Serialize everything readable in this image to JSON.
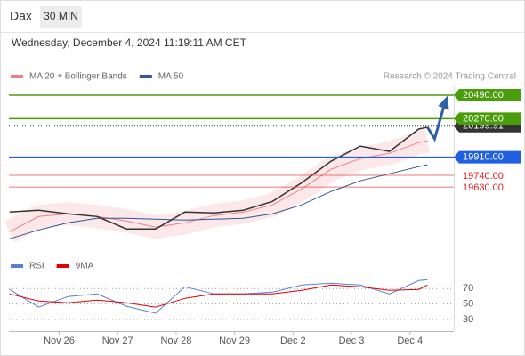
{
  "header": {
    "symbol": "Dax",
    "interval": "30 MIN",
    "datetime": "Wednesday, December 4, 2024 11:19:11 AM CET"
  },
  "chart_data": [
    {
      "type": "line",
      "credit": "Research © 2024 Trading Central",
      "x": [
        -0.85,
        -0.35,
        0.15,
        0.65,
        1.15,
        1.65,
        2.15,
        2.65,
        3.15,
        3.65,
        4.15,
        4.65,
        5.15,
        5.65,
        6.15,
        6.3
      ],
      "price": {
        "color": "#333333",
        "values": [
          19396,
          19413,
          19380,
          19354,
          19238,
          19238,
          19396,
          19388,
          19413,
          19496,
          19672,
          19872,
          20014,
          19964,
          20173,
          20190
        ]
      },
      "series": [
        {
          "name": "MA 20 + Bollinger Bands",
          "color": "#f08080",
          "values": [
            19212,
            19354,
            19380,
            19354,
            19313,
            19254,
            19296,
            19363,
            19396,
            19463,
            19613,
            19797,
            19897,
            19947,
            20047,
            20064
          ]
        },
        {
          "name": "MA 50",
          "color": "#2f5597",
          "values": [
            19146,
            19229,
            19296,
            19338,
            19338,
            19329,
            19321,
            19329,
            19338,
            19380,
            19463,
            19588,
            19688,
            19755,
            19822,
            19839
          ]
        }
      ],
      "levels": [
        {
          "value": 20199.91,
          "label": "20199.91",
          "color": "#333333",
          "line": "dotted"
        },
        {
          "value": 20490,
          "label": "20490.00",
          "color": "#4a9d0a",
          "line": "solid"
        },
        {
          "value": 20270,
          "label": "20270.00",
          "color": "#4a9d0a",
          "line": "solid"
        },
        {
          "value": 19910,
          "label": "19910.00",
          "color": "#1f5fe0",
          "line": "solid"
        },
        {
          "value": 19740,
          "label": "19740.00",
          "color": "#e02020",
          "line": "solid"
        },
        {
          "value": 19630,
          "label": "19630.00",
          "color": "#e02020",
          "line": "solid"
        }
      ],
      "xlim": [
        -0.86,
        6.75
      ],
      "ylim": [
        19090,
        20590
      ]
    },
    {
      "type": "line",
      "x": [
        -0.85,
        -0.35,
        0.15,
        0.65,
        1.15,
        1.65,
        2.15,
        2.65,
        3.15,
        3.65,
        4.15,
        4.65,
        5.15,
        5.65,
        6.15,
        6.3
      ],
      "series": [
        {
          "name": "RSI",
          "color": "#5b7fd6",
          "values": [
            68.9,
            46,
            59.7,
            63.1,
            47.1,
            38,
            72.3,
            63.1,
            63.1,
            65.4,
            74.6,
            76.9,
            74.6,
            63.1,
            80.3,
            81.4
          ]
        },
        {
          "name": "9MA",
          "color": "#e00000",
          "values": [
            63.1,
            54,
            51.7,
            55.1,
            51.7,
            46,
            57.4,
            63.1,
            63.1,
            63.1,
            67.7,
            74.6,
            72.3,
            67.7,
            68.9,
            74.6
          ]
        }
      ],
      "xlim": [
        -0.86,
        6.75
      ],
      "ylim": [
        15,
        83
      ],
      "yticks": [
        30,
        50,
        70
      ],
      "xticks": [
        {
          "value": 0,
          "label": "Nov 26"
        },
        {
          "value": 1,
          "label": "Nov 27"
        },
        {
          "value": 2,
          "label": "Nov 28"
        },
        {
          "value": 3,
          "label": "Nov 29"
        },
        {
          "value": 4,
          "label": "Dec 2"
        },
        {
          "value": 5,
          "label": "Dec 3"
        },
        {
          "value": 6,
          "label": "Dec 4"
        }
      ]
    }
  ]
}
